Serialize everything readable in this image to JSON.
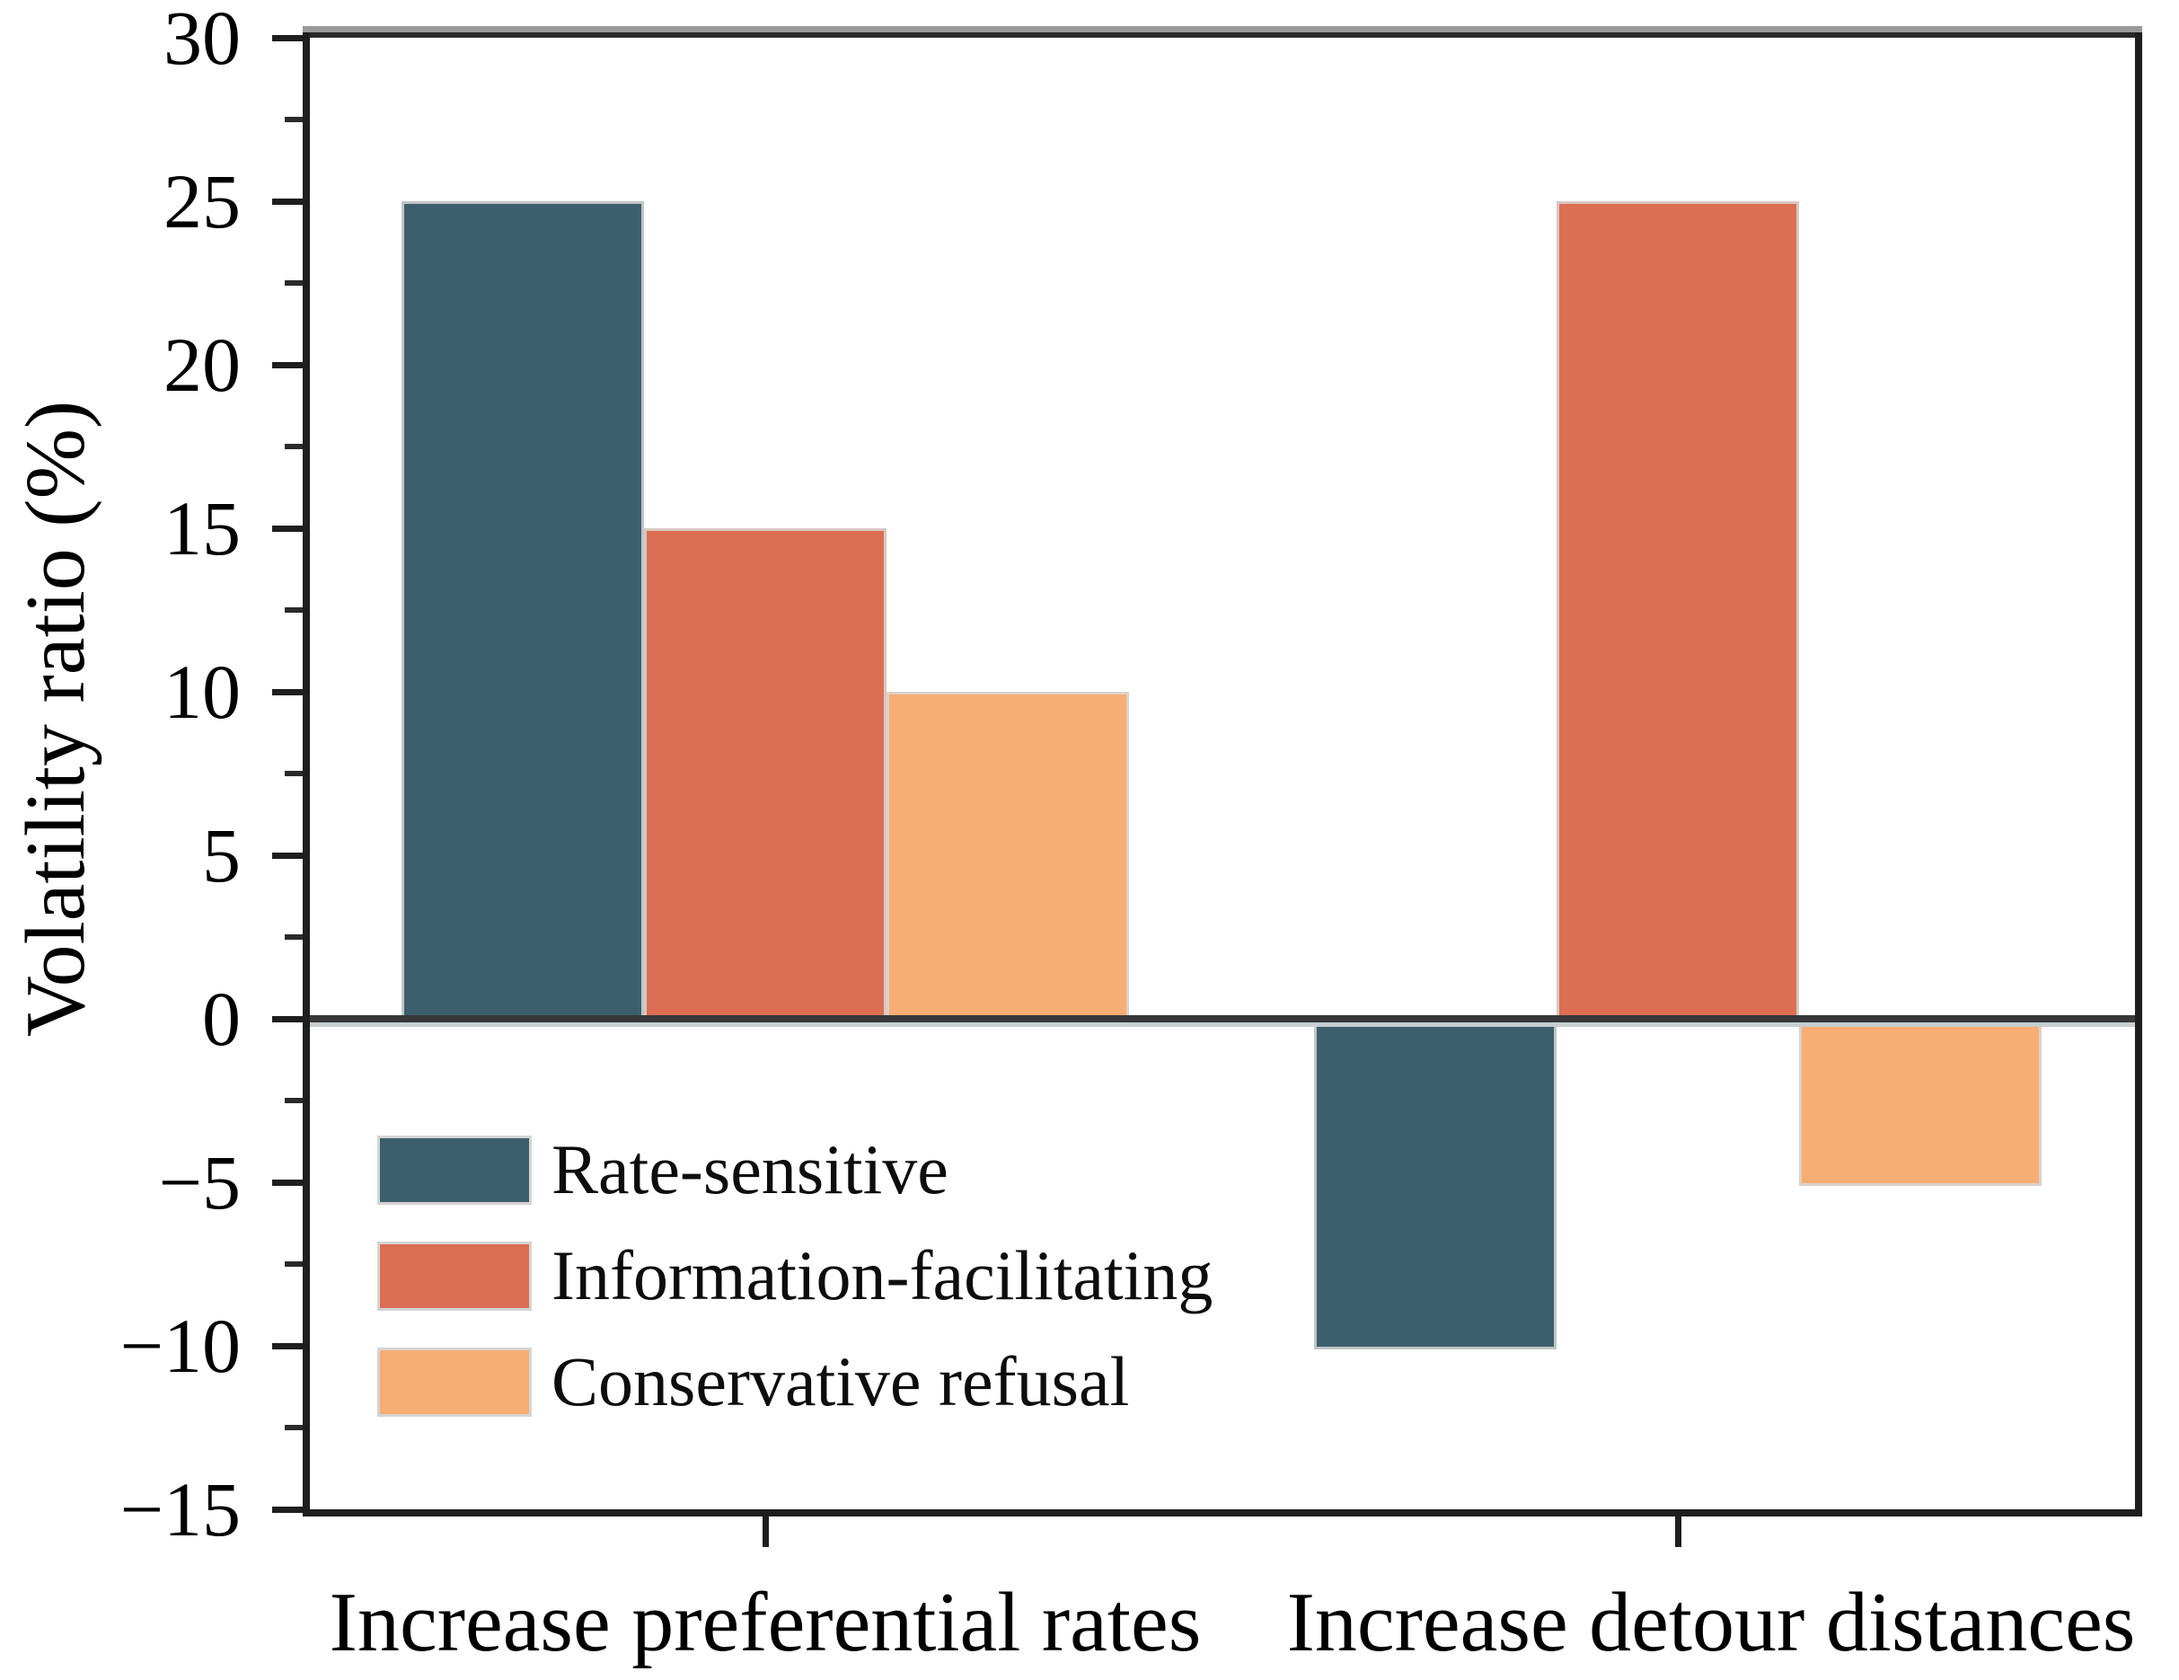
{
  "chart_data": {
    "type": "bar",
    "title": "",
    "xlabel": "",
    "ylabel": "Volatility ratio (%)",
    "categories": [
      "Increase preferential rates",
      "Increase detour distances"
    ],
    "series": [
      {
        "name": "Rate-sensitive",
        "color": "#3C5F6D",
        "values": [
          25,
          -10
        ]
      },
      {
        "name": "Information-facilitating",
        "color": "#DC6E53",
        "values": [
          15,
          25
        ]
      },
      {
        "name": "Conservative refusal",
        "color": "#F8AD72",
        "values": [
          10,
          -5
        ]
      }
    ],
    "ylim": [
      -15,
      30
    ],
    "yticks_major": [
      30,
      25,
      20,
      15,
      10,
      5,
      0,
      -5,
      -10,
      -15
    ],
    "ytick_minor_step": 2.5,
    "grid": false,
    "legend_position": "lower-left",
    "zero_line": true
  }
}
